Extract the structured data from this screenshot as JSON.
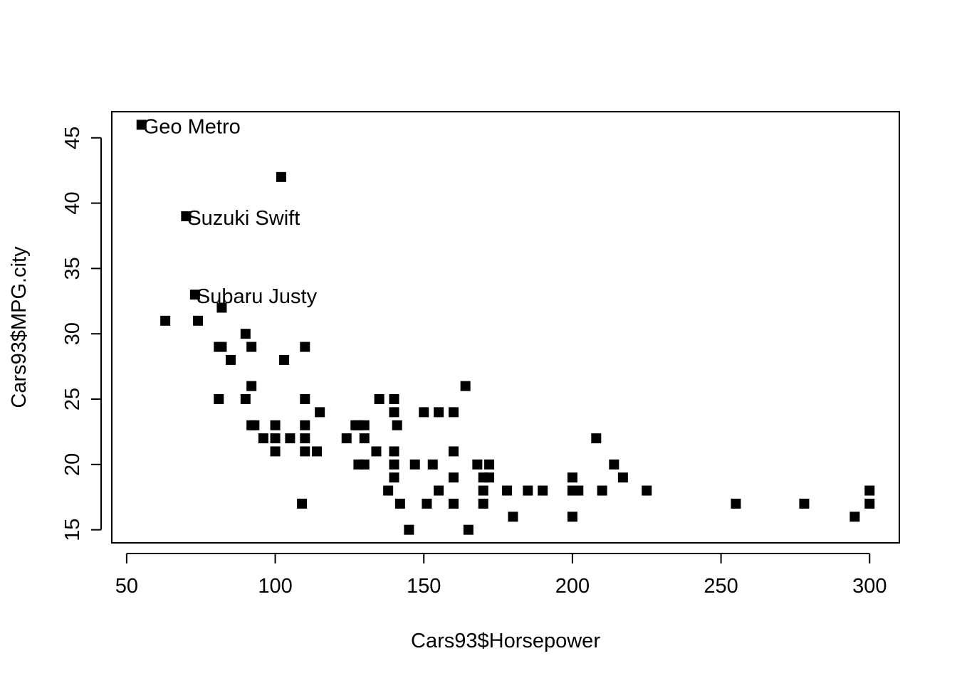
{
  "chart_data": {
    "type": "scatter",
    "title": "",
    "xlabel": "Cars93$Horsepower",
    "ylabel": "Cars93$MPG.city",
    "xlim": [
      45,
      310
    ],
    "ylim": [
      14.0,
      47.0
    ],
    "x_ticks": [
      50,
      100,
      150,
      200,
      250,
      300
    ],
    "y_ticks": [
      15,
      20,
      25,
      30,
      35,
      40,
      45
    ],
    "grid": false,
    "marker": "square",
    "marker_color": "#000000",
    "points": [
      {
        "x": 55,
        "y": 46
      },
      {
        "x": 102,
        "y": 42
      },
      {
        "x": 70,
        "y": 39
      },
      {
        "x": 73,
        "y": 33
      },
      {
        "x": 63,
        "y": 31
      },
      {
        "x": 74,
        "y": 31
      },
      {
        "x": 82,
        "y": 32
      },
      {
        "x": 90,
        "y": 30
      },
      {
        "x": 81,
        "y": 29
      },
      {
        "x": 82,
        "y": 29
      },
      {
        "x": 92,
        "y": 29
      },
      {
        "x": 110,
        "y": 29
      },
      {
        "x": 85,
        "y": 28
      },
      {
        "x": 103,
        "y": 28
      },
      {
        "x": 92,
        "y": 26
      },
      {
        "x": 164,
        "y": 26
      },
      {
        "x": 81,
        "y": 25
      },
      {
        "x": 90,
        "y": 25
      },
      {
        "x": 110,
        "y": 25
      },
      {
        "x": 135,
        "y": 25
      },
      {
        "x": 140,
        "y": 25
      },
      {
        "x": 115,
        "y": 24
      },
      {
        "x": 140,
        "y": 24
      },
      {
        "x": 150,
        "y": 24
      },
      {
        "x": 155,
        "y": 24
      },
      {
        "x": 160,
        "y": 24
      },
      {
        "x": 92,
        "y": 23
      },
      {
        "x": 93,
        "y": 23
      },
      {
        "x": 100,
        "y": 23
      },
      {
        "x": 110,
        "y": 23
      },
      {
        "x": 127,
        "y": 23
      },
      {
        "x": 128,
        "y": 23
      },
      {
        "x": 130,
        "y": 23
      },
      {
        "x": 141,
        "y": 23
      },
      {
        "x": 96,
        "y": 22
      },
      {
        "x": 100,
        "y": 22
      },
      {
        "x": 105,
        "y": 22
      },
      {
        "x": 110,
        "y": 22
      },
      {
        "x": 124,
        "y": 22
      },
      {
        "x": 130,
        "y": 22
      },
      {
        "x": 208,
        "y": 22
      },
      {
        "x": 100,
        "y": 21
      },
      {
        "x": 110,
        "y": 21
      },
      {
        "x": 114,
        "y": 21
      },
      {
        "x": 134,
        "y": 21
      },
      {
        "x": 140,
        "y": 21
      },
      {
        "x": 160,
        "y": 21
      },
      {
        "x": 128,
        "y": 20
      },
      {
        "x": 130,
        "y": 20
      },
      {
        "x": 140,
        "y": 20
      },
      {
        "x": 147,
        "y": 20
      },
      {
        "x": 153,
        "y": 20
      },
      {
        "x": 168,
        "y": 20
      },
      {
        "x": 172,
        "y": 20
      },
      {
        "x": 214,
        "y": 20
      },
      {
        "x": 140,
        "y": 19
      },
      {
        "x": 160,
        "y": 19
      },
      {
        "x": 170,
        "y": 19
      },
      {
        "x": 172,
        "y": 19
      },
      {
        "x": 200,
        "y": 19
      },
      {
        "x": 217,
        "y": 19
      },
      {
        "x": 138,
        "y": 18
      },
      {
        "x": 155,
        "y": 18
      },
      {
        "x": 170,
        "y": 18
      },
      {
        "x": 178,
        "y": 18
      },
      {
        "x": 185,
        "y": 18
      },
      {
        "x": 190,
        "y": 18
      },
      {
        "x": 200,
        "y": 18
      },
      {
        "x": 202,
        "y": 18
      },
      {
        "x": 210,
        "y": 18
      },
      {
        "x": 225,
        "y": 18
      },
      {
        "x": 300,
        "y": 18
      },
      {
        "x": 109,
        "y": 17
      },
      {
        "x": 142,
        "y": 17
      },
      {
        "x": 151,
        "y": 17
      },
      {
        "x": 160,
        "y": 17
      },
      {
        "x": 170,
        "y": 17
      },
      {
        "x": 255,
        "y": 17
      },
      {
        "x": 278,
        "y": 17
      },
      {
        "x": 300,
        "y": 17
      },
      {
        "x": 180,
        "y": 16
      },
      {
        "x": 200,
        "y": 16
      },
      {
        "x": 295,
        "y": 16
      },
      {
        "x": 145,
        "y": 15
      },
      {
        "x": 165,
        "y": 15
      }
    ],
    "annotations": [
      {
        "x": 55,
        "y": 46,
        "text": "Geo Metro"
      },
      {
        "x": 70,
        "y": 39,
        "text": "Suzuki Swift"
      },
      {
        "x": 73,
        "y": 33,
        "text": "Subaru Justy"
      }
    ]
  }
}
